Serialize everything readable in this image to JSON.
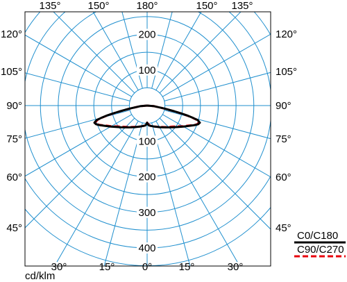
{
  "chart_data": {
    "type": "polar-luminous-intensity",
    "unit_label": "cd/klm",
    "radial_ticks": [
      100,
      200,
      300,
      400
    ],
    "radial_max": 450,
    "top_angle_labels": [
      "135°",
      "150°",
      "180°",
      "150°",
      "135°"
    ],
    "side_angle_labels": [
      "120°",
      "105°",
      "90°",
      "75°",
      "60°",
      "45°"
    ],
    "bottom_angle_labels": [
      "30°",
      "15°",
      "0°",
      "15°",
      "30°"
    ],
    "series": [
      {
        "name": "C0/C180",
        "color": "#000000",
        "style": "solid",
        "angles_deg": [
          0,
          2,
          5,
          10,
          20,
          30,
          40,
          50,
          60,
          65,
          68,
          70,
          72,
          74,
          75,
          76,
          77,
          78,
          80,
          85,
          90
        ],
        "values": [
          48,
          52,
          56,
          58,
          63,
          70,
          80,
          95,
          118,
          134,
          146,
          153,
          156,
          148,
          134,
          118,
          100,
          80,
          52,
          20,
          0
        ]
      },
      {
        "name": "C90/C270",
        "color": "#e8000b",
        "style": "dashed",
        "angles_deg": [
          0,
          5,
          10,
          20,
          30,
          40,
          50,
          60,
          65,
          68,
          70,
          72,
          74,
          75,
          76,
          77,
          78,
          80,
          85,
          90
        ],
        "values": [
          48,
          54,
          58,
          63,
          69,
          79,
          92,
          116,
          132,
          145,
          151,
          153,
          145,
          132,
          116,
          98,
          78,
          50,
          20,
          0
        ]
      }
    ]
  }
}
